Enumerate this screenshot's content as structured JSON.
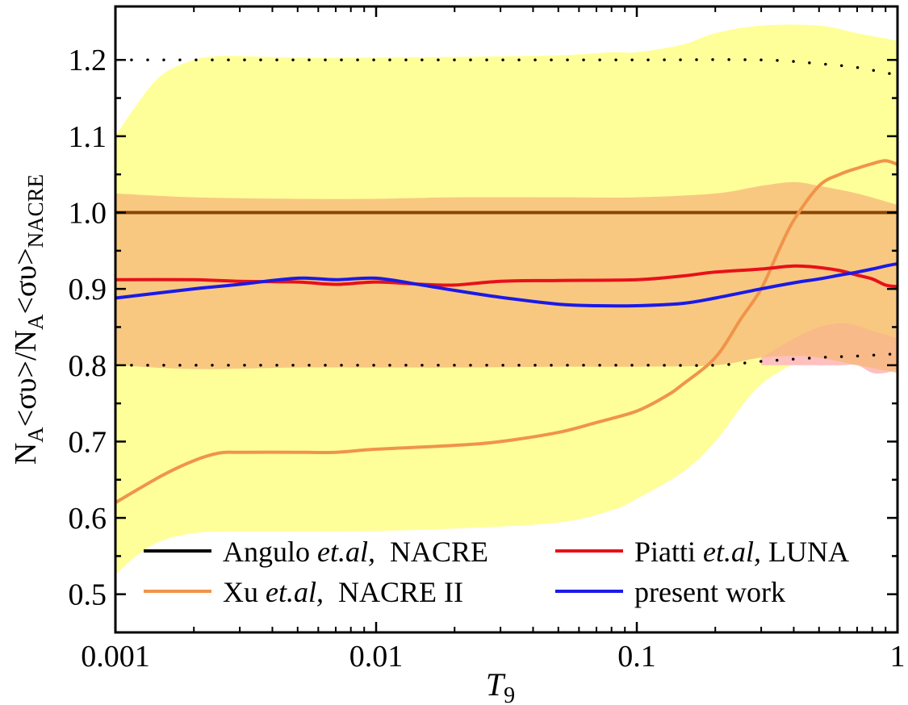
{
  "chart_data": {
    "type": "line",
    "xscale": "log",
    "xlim": [
      0.001,
      1
    ],
    "ylim": [
      0.45,
      1.27
    ],
    "xticks": [
      {
        "value": 0.001,
        "label": "0.001"
      },
      {
        "value": 0.01,
        "label": "0.01"
      },
      {
        "value": 0.1,
        "label": "0.1"
      },
      {
        "value": 1,
        "label": "1"
      }
    ],
    "yticks": [
      {
        "value": 0.5,
        "label": "0.5"
      },
      {
        "value": 0.6,
        "label": "0.6"
      },
      {
        "value": 0.7,
        "label": "0.7"
      },
      {
        "value": 0.8,
        "label": "0.8"
      },
      {
        "value": 0.9,
        "label": "0.9"
      },
      {
        "value": 1.0,
        "label": "1.0"
      },
      {
        "value": 1.1,
        "label": "1.1"
      },
      {
        "value": 1.2,
        "label": "1.2"
      }
    ],
    "xlabel": {
      "main": "T",
      "sub": "9"
    },
    "ylabel": {
      "p1": "N",
      "s1": "A",
      "p2": "<συ>/N",
      "s2": "A",
      "p3": "<συ>",
      "s3": "NACRE"
    },
    "bands": [
      {
        "name": "Xu NACRE II uncertainty",
        "color": "#ffff99",
        "x": [
          0.001,
          0.0012,
          0.0015,
          0.002,
          0.0025,
          0.003,
          0.005,
          0.01,
          0.02,
          0.05,
          0.08,
          0.1,
          0.15,
          0.2,
          0.3,
          0.5,
          0.7,
          1
        ],
        "upper": [
          1.1,
          1.14,
          1.18,
          1.2,
          1.205,
          1.205,
          1.203,
          1.203,
          1.204,
          1.206,
          1.21,
          1.21,
          1.22,
          1.235,
          1.245,
          1.245,
          1.235,
          1.225
        ],
        "lower": [
          0.525,
          0.55,
          0.57,
          0.58,
          0.582,
          0.582,
          0.582,
          0.583,
          0.586,
          0.594,
          0.61,
          0.625,
          0.66,
          0.7,
          0.775,
          0.815,
          0.815,
          0.81
        ]
      },
      {
        "name": "Piatti LUNA uncertainty",
        "color": "#ffc0c0",
        "x": [
          0.3,
          0.4,
          0.5,
          0.6,
          0.7,
          0.8,
          0.9,
          1
        ],
        "upper": [
          0.81,
          0.835,
          0.85,
          0.855,
          0.852,
          0.845,
          0.84,
          0.835
        ],
        "lower": [
          0.8,
          0.8,
          0.8,
          0.8,
          0.8,
          0.79,
          0.79,
          0.795
        ]
      },
      {
        "name": "NACRE uncertainty",
        "color": "#f6b97a",
        "opacity": 0.78,
        "x": [
          0.001,
          0.002,
          0.005,
          0.01,
          0.02,
          0.05,
          0.1,
          0.2,
          0.3,
          0.4,
          0.5,
          0.7,
          1
        ],
        "upper": [
          1.025,
          1.02,
          1.018,
          1.018,
          1.02,
          1.02,
          1.02,
          1.025,
          1.035,
          1.04,
          1.035,
          1.025,
          1.01
        ],
        "lower": [
          0.8,
          0.795,
          0.797,
          0.797,
          0.797,
          0.798,
          0.798,
          0.8,
          0.81,
          0.812,
          0.81,
          0.8,
          0.79
        ]
      }
    ],
    "dotted_lines": [
      {
        "name": "NACRE upper limit",
        "x": [
          0.001,
          0.01,
          0.1,
          0.3,
          0.5,
          0.7,
          1
        ],
        "y": [
          1.2,
          1.2,
          1.2,
          1.2,
          1.195,
          1.19,
          1.18
        ]
      },
      {
        "name": "NACRE lower limit",
        "x": [
          0.001,
          0.01,
          0.1,
          0.2,
          0.3,
          0.5,
          0.7,
          1
        ],
        "y": [
          0.8,
          0.8,
          0.8,
          0.8,
          0.805,
          0.81,
          0.812,
          0.815
        ]
      }
    ],
    "series": [
      {
        "name": "Angulo et.al, NACRE",
        "color": "#8b4500",
        "x": [
          0.001,
          1
        ],
        "y": [
          1.0,
          1.0
        ]
      },
      {
        "name": "Xu et.al, NACRE II",
        "color": "#f0944a",
        "x": [
          0.001,
          0.0015,
          0.002,
          0.0025,
          0.003,
          0.005,
          0.007,
          0.01,
          0.02,
          0.03,
          0.05,
          0.07,
          0.1,
          0.13,
          0.15,
          0.2,
          0.25,
          0.3,
          0.35,
          0.4,
          0.5,
          0.6,
          0.7,
          0.8,
          0.9,
          1.0
        ],
        "y": [
          0.62,
          0.655,
          0.675,
          0.685,
          0.686,
          0.686,
          0.686,
          0.69,
          0.695,
          0.7,
          0.712,
          0.725,
          0.74,
          0.76,
          0.775,
          0.81,
          0.86,
          0.9,
          0.95,
          0.99,
          1.035,
          1.05,
          1.058,
          1.064,
          1.068,
          1.063
        ]
      },
      {
        "name": "Piatti et.al, LUNA",
        "color": "#e8101a",
        "x": [
          0.001,
          0.002,
          0.003,
          0.005,
          0.007,
          0.01,
          0.015,
          0.02,
          0.03,
          0.05,
          0.1,
          0.15,
          0.2,
          0.3,
          0.4,
          0.5,
          0.6,
          0.7,
          0.8,
          0.9,
          1.0
        ],
        "y": [
          0.912,
          0.912,
          0.91,
          0.909,
          0.906,
          0.909,
          0.906,
          0.905,
          0.91,
          0.911,
          0.912,
          0.917,
          0.922,
          0.926,
          0.93,
          0.928,
          0.924,
          0.918,
          0.913,
          0.905,
          0.903
        ]
      },
      {
        "name": "present work",
        "color": "#1a1ae6",
        "x": [
          0.001,
          0.002,
          0.003,
          0.005,
          0.007,
          0.01,
          0.015,
          0.02,
          0.03,
          0.05,
          0.07,
          0.1,
          0.15,
          0.2,
          0.3,
          0.4,
          0.5,
          0.6,
          0.7,
          0.8,
          0.9,
          1.0
        ],
        "y": [
          0.888,
          0.9,
          0.906,
          0.914,
          0.912,
          0.914,
          0.905,
          0.898,
          0.889,
          0.88,
          0.878,
          0.878,
          0.881,
          0.888,
          0.9,
          0.908,
          0.913,
          0.918,
          0.922,
          0.926,
          0.93,
          0.933
        ]
      }
    ],
    "legend": {
      "placement": "bottom",
      "entries": [
        {
          "pre": "Angulo ",
          "em": "et.al,",
          "post": "  NACRE",
          "color": "#000000"
        },
        {
          "pre": "Piatti ",
          "em": "et.al,",
          "post": " LUNA",
          "color": "#e8101a"
        },
        {
          "pre": "Xu ",
          "em": "et.al,",
          "post": "  NACRE II",
          "color": "#f0944a"
        },
        {
          "pre": "present work",
          "em": "",
          "post": "",
          "color": "#1a1ae6"
        }
      ]
    }
  }
}
